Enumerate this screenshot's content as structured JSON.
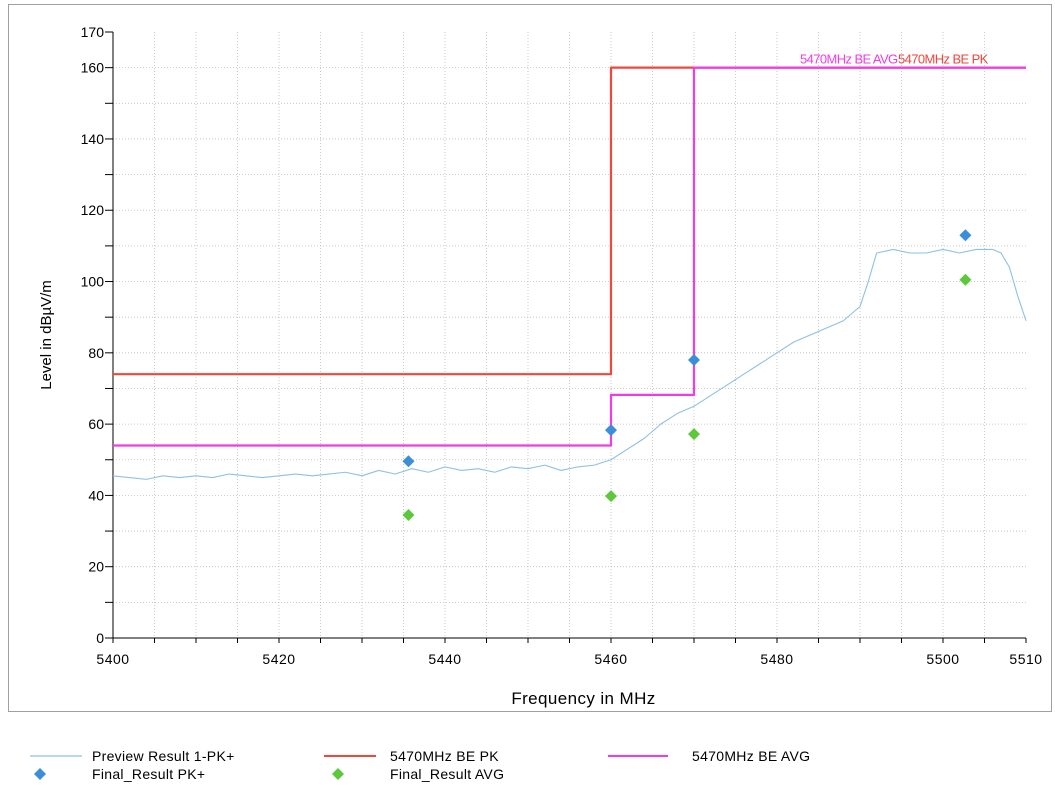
{
  "chart_data": {
    "type": "line",
    "xlabel": "Frequency in MHz",
    "ylabel": "Level in dBµV/m",
    "xlim": [
      5400,
      5510
    ],
    "ylim": [
      0,
      170
    ],
    "xticks": [
      5400,
      5420,
      5440,
      5460,
      5480,
      5500,
      5510
    ],
    "yticks": [
      0,
      20,
      40,
      60,
      80,
      100,
      120,
      140,
      160,
      170
    ],
    "grid": true,
    "legend_position": "bottom",
    "colors": {
      "preview": "#8ec0e6",
      "pk_limit": "#f0463c",
      "avg_limit": "#f03ce6",
      "final_pk": "#3a8fd8",
      "final_avg": "#5cc83a"
    },
    "series": [
      {
        "name": "Preview Result 1-PK+",
        "kind": "line",
        "x": [
          5400,
          5402,
          5404,
          5406,
          5408,
          5410,
          5412,
          5414,
          5416,
          5418,
          5420,
          5422,
          5424,
          5426,
          5428,
          5430,
          5432,
          5434,
          5436,
          5438,
          5440,
          5442,
          5444,
          5446,
          5448,
          5450,
          5452,
          5454,
          5456,
          5458,
          5460,
          5462,
          5464,
          5466,
          5468,
          5470,
          5472,
          5474,
          5476,
          5478,
          5480,
          5482,
          5484,
          5486,
          5488,
          5490,
          5491,
          5492,
          5494,
          5496,
          5498,
          5500,
          5502,
          5504,
          5506,
          5507,
          5508,
          5509,
          5510
        ],
        "values": [
          45.5,
          45,
          44.5,
          45.5,
          45,
          45.5,
          45,
          46,
          45.5,
          45,
          45.5,
          46,
          45.5,
          46,
          46.5,
          45.5,
          47,
          46,
          47.5,
          46.5,
          48,
          47,
          47.5,
          46.5,
          48,
          47.5,
          48.5,
          47,
          48,
          48.5,
          50,
          53,
          56,
          60,
          63,
          65,
          68,
          71,
          74,
          77,
          80,
          83,
          85,
          87,
          89,
          93,
          100,
          108,
          109,
          108,
          108,
          109,
          108,
          109,
          109,
          108,
          104,
          96,
          89
        ]
      },
      {
        "name": "5470MHz BE PK",
        "kind": "step",
        "x": [
          5400,
          5460,
          5460,
          5510
        ],
        "values": [
          74,
          74,
          160,
          160
        ]
      },
      {
        "name": "5470MHz BE AVG",
        "kind": "step",
        "x": [
          5400,
          5460,
          5460,
          5470,
          5470,
          5510
        ],
        "values": [
          54,
          54,
          68.2,
          68.2,
          160,
          160
        ]
      },
      {
        "name": "Final_Result PK+",
        "kind": "scatter",
        "x": [
          5435.6,
          5460,
          5470,
          5502.7
        ],
        "values": [
          49.6,
          58.3,
          78,
          113
        ]
      },
      {
        "name": "Final_Result AVG",
        "kind": "scatter",
        "x": [
          5435.6,
          5460,
          5470,
          5502.7
        ],
        "values": [
          34.5,
          39.8,
          57.2,
          100.5
        ]
      }
    ],
    "annotations": [
      {
        "text": "5470MHz BE AVG",
        "color": "#f03ce6"
      },
      {
        "text": "5470MHz BE PK",
        "color": "#f0463c"
      }
    ]
  },
  "legend": [
    {
      "label": "Preview Result 1-PK+",
      "marker": "line",
      "color": "#8ec0e6"
    },
    {
      "label": "5470MHz BE PK",
      "marker": "line",
      "color": "#f0463c"
    },
    {
      "label": "5470MHz BE AVG",
      "marker": "line",
      "color": "#f03ce6"
    },
    {
      "label": "Final_Result PK+",
      "marker": "diamond",
      "color": "#3a8fd8"
    },
    {
      "label": "Final_Result AVG",
      "marker": "diamond",
      "color": "#5cc83a"
    }
  ]
}
